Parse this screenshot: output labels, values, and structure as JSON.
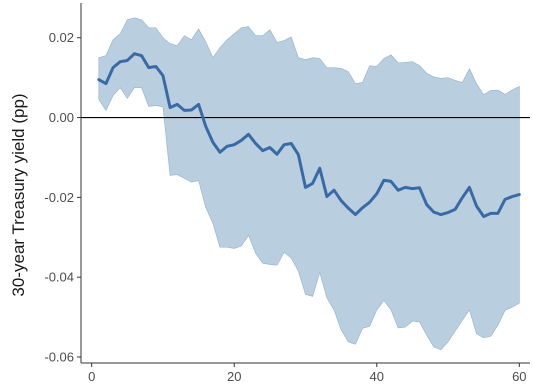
{
  "chart_data": {
    "type": "area",
    "title": "",
    "xlabel": "",
    "ylabel": "30-year Treasury yield (pp)",
    "xlim": [
      -1.5,
      61.5
    ],
    "ylim": [
      -0.0615,
      0.0287
    ],
    "x_ticks": [
      {
        "value": 0,
        "label": "0"
      },
      {
        "value": 20,
        "label": "20"
      },
      {
        "value": 40,
        "label": "40"
      },
      {
        "value": 60,
        "label": "60"
      }
    ],
    "y_ticks": [
      {
        "value": 0.02,
        "label": "0.02"
      },
      {
        "value": 0.0,
        "label": "0.00"
      },
      {
        "value": -0.02,
        "label": "-0.02"
      },
      {
        "value": -0.04,
        "label": "-0.04"
      },
      {
        "value": -0.06,
        "label": "-0.06"
      }
    ],
    "reference_line": 0,
    "grid": false,
    "colors": {
      "line": "#3a6aa6",
      "band": "#b9cfe0",
      "band_edge": "#8fb0cc",
      "zero_line": "#000000",
      "axis": "#333333",
      "tick_text": "#4d4d4d"
    },
    "series": [
      {
        "type": "line",
        "x": [
          1,
          2,
          3,
          4,
          5,
          6,
          7,
          8,
          9,
          10,
          11,
          12,
          13,
          14,
          15,
          16,
          17,
          18,
          19,
          20,
          21,
          22,
          23,
          24,
          25,
          26,
          27,
          28,
          29,
          30,
          31,
          32,
          33,
          34,
          35,
          36,
          37,
          38,
          39,
          40,
          41,
          42,
          43,
          44,
          45,
          46,
          47,
          48,
          49,
          50,
          51,
          52,
          53,
          54,
          55,
          56,
          57,
          58,
          59,
          60
        ],
        "values": [
          0.0095,
          0.0085,
          0.0125,
          0.014,
          0.0143,
          0.016,
          0.0155,
          0.0125,
          0.0128,
          0.0105,
          0.0025,
          0.0033,
          0.0018,
          0.0019,
          0.0033,
          -0.0022,
          -0.0062,
          -0.0087,
          -0.0072,
          -0.0068,
          -0.0057,
          -0.0042,
          -0.0065,
          -0.0083,
          -0.0075,
          -0.0092,
          -0.0068,
          -0.0065,
          -0.0093,
          -0.0175,
          -0.0165,
          -0.0127,
          -0.0198,
          -0.0182,
          -0.0208,
          -0.0227,
          -0.0243,
          -0.0226,
          -0.0212,
          -0.0191,
          -0.0157,
          -0.016,
          -0.0182,
          -0.0175,
          -0.0178,
          -0.0176,
          -0.0218,
          -0.0237,
          -0.0243,
          -0.0238,
          -0.023,
          -0.0201,
          -0.0175,
          -0.0222,
          -0.0248,
          -0.024,
          -0.024,
          -0.0205,
          -0.0198,
          -0.0193
        ]
      },
      {
        "type": "band",
        "x": [
          1,
          2,
          3,
          4,
          5,
          6,
          7,
          8,
          9,
          10,
          11,
          12,
          13,
          14,
          15,
          16,
          17,
          18,
          19,
          20,
          21,
          22,
          23,
          24,
          25,
          26,
          27,
          28,
          29,
          30,
          31,
          32,
          33,
          34,
          35,
          36,
          37,
          38,
          39,
          40,
          41,
          42,
          43,
          44,
          45,
          46,
          47,
          48,
          49,
          50,
          51,
          52,
          53,
          54,
          55,
          56,
          57,
          58,
          59,
          60
        ],
        "upper": [
          0.015,
          0.0155,
          0.0195,
          0.021,
          0.0245,
          0.025,
          0.0245,
          0.0225,
          0.0225,
          0.02,
          0.0185,
          0.018,
          0.0205,
          0.0195,
          0.0222,
          0.019,
          0.015,
          0.0175,
          0.0195,
          0.021,
          0.0225,
          0.0228,
          0.0205,
          0.0205,
          0.022,
          0.0188,
          0.0193,
          0.0202,
          0.015,
          0.0145,
          0.015,
          0.0148,
          0.0125,
          0.0125,
          0.0123,
          0.0115,
          0.0085,
          0.0088,
          0.013,
          0.0128,
          0.0148,
          0.0157,
          0.0137,
          0.0138,
          0.014,
          0.013,
          0.0111,
          0.0102,
          0.0098,
          0.01,
          0.0093,
          0.0088,
          0.0122,
          0.0085,
          0.0057,
          0.0068,
          0.0069,
          0.0058,
          0.0069,
          0.0078
        ],
        "lower": [
          0.0045,
          0.0018,
          0.0055,
          0.0075,
          0.0048,
          0.0075,
          0.0075,
          0.0028,
          0.003,
          0.0027,
          -0.0145,
          -0.0143,
          -0.0152,
          -0.0162,
          -0.0158,
          -0.0225,
          -0.0265,
          -0.0325,
          -0.0325,
          -0.0328,
          -0.0322,
          -0.0295,
          -0.034,
          -0.0365,
          -0.0368,
          -0.037,
          -0.0338,
          -0.0352,
          -0.0385,
          -0.0443,
          -0.0448,
          -0.0388,
          -0.0452,
          -0.0482,
          -0.0532,
          -0.0562,
          -0.0568,
          -0.0528,
          -0.0523,
          -0.0482,
          -0.0458,
          -0.0482,
          -0.0527,
          -0.0525,
          -0.051,
          -0.0512,
          -0.0545,
          -0.0575,
          -0.0582,
          -0.0562,
          -0.0535,
          -0.0508,
          -0.0482,
          -0.0542,
          -0.0552,
          -0.0548,
          -0.052,
          -0.0483,
          -0.0475,
          -0.0465
        ]
      }
    ]
  }
}
